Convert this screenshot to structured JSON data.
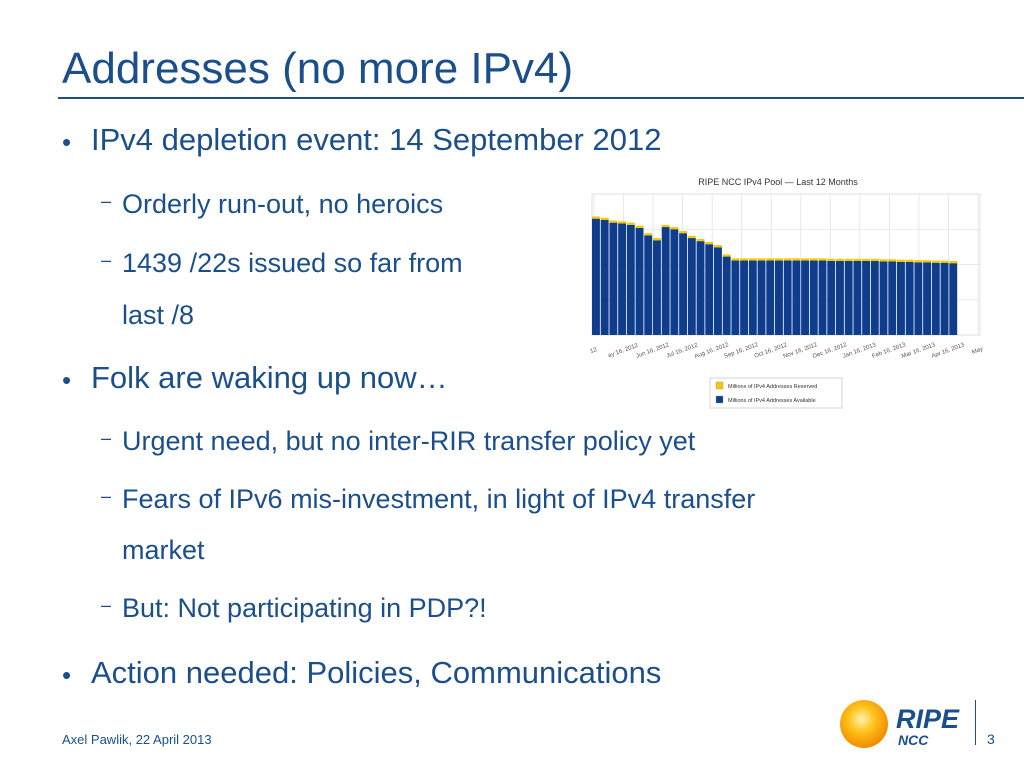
{
  "slide": {
    "title": "Addresses (no more IPv4)",
    "bullets": [
      {
        "text": "IPv4 depletion event: 14 September 2012",
        "subs": [
          "Orderly run-out, no heroics",
          "1439 /22s issued so far from",
          "last /8"
        ]
      },
      {
        "text": "Folk are waking up now…",
        "subs": [
          "Urgent need, but no inter-RIR transfer policy yet",
          "Fears of IPv6 mis-investment, in light of IPv4 transfer",
          "market",
          "But: Not participating in PDP?!"
        ]
      },
      {
        "text": "Action needed: Policies, Communications",
        "subs": []
      }
    ],
    "footer": "Axel Pawlik, 22 April 2013",
    "page_number": "3",
    "logo": {
      "name": "ripe-ncc-logo",
      "text_main": "RIPE",
      "text_sub": "NCC"
    },
    "bullet_glyph": "•",
    "dash_glyph": "–"
  },
  "colors": {
    "title": "#1b4f8c",
    "available": "#0f3d8c",
    "reserved": "#f5c800"
  },
  "chart_data": {
    "type": "bar",
    "stacked": true,
    "title": "RIPE NCC IPv4 Pool — Last 12 Months",
    "x_tick_labels": [
      "12",
      "ay 16, 2012",
      "Jun 16, 2012",
      "Jul 16, 2012",
      "Aug 16, 2012",
      "Sep 16, 2012",
      "Oct 16, 2012",
      "Nov 16, 2012",
      "Dec 16, 2012",
      "Jan 16, 2013",
      "Feb 16, 2013",
      "Mar 16, 2013",
      "Apr 16, 2013",
      "May"
    ],
    "legend": [
      "Millions of IPv4 Addresses Reserved",
      "Millions of IPv4 Addresses Available"
    ],
    "legend_position": "bottom-right",
    "grid": true,
    "ylim": [
      0,
      32
    ],
    "series": [
      {
        "name": "Millions of IPv4 Addresses Available",
        "color": "#0f3d8c",
        "values": [
          26.4,
          26.1,
          25.5,
          25.3,
          25.0,
          24.3,
          22.6,
          21.5,
          24.5,
          24.0,
          23.1,
          22.0,
          21.3,
          20.6,
          19.9,
          17.8,
          16.9,
          16.9,
          16.9,
          16.9,
          16.9,
          16.9,
          16.9,
          16.9,
          16.9,
          16.9,
          16.9,
          16.8,
          16.8,
          16.8,
          16.8,
          16.8,
          16.8,
          16.7,
          16.7,
          16.6,
          16.6,
          16.5,
          16.5,
          16.4,
          16.4,
          16.3
        ]
      },
      {
        "name": "Millions of IPv4 Addresses Reserved",
        "color": "#f5c800",
        "values": [
          0.5,
          0.5,
          0.5,
          0.5,
          0.5,
          0.5,
          0.5,
          0.5,
          0.5,
          0.5,
          0.5,
          0.5,
          0.5,
          0.5,
          0.5,
          0.5,
          0.5,
          0.5,
          0.5,
          0.5,
          0.5,
          0.5,
          0.5,
          0.5,
          0.5,
          0.5,
          0.5,
          0.5,
          0.5,
          0.5,
          0.5,
          0.5,
          0.5,
          0.5,
          0.5,
          0.5,
          0.5,
          0.5,
          0.5,
          0.5,
          0.5,
          0.5
        ]
      }
    ]
  }
}
